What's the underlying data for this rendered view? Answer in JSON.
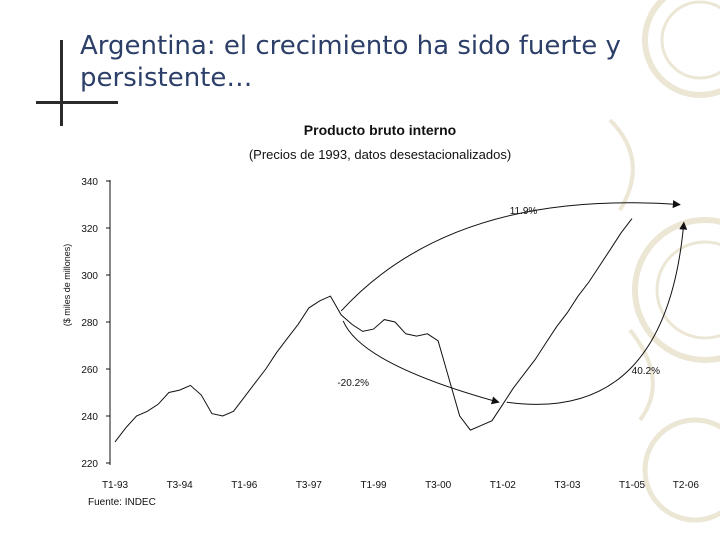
{
  "slide": {
    "title": "Argentina: el crecimiento ha sido fuerte y persistente…",
    "source": "Fuente: INDEC"
  },
  "chart_data": {
    "type": "line",
    "title": "Producto bruto interno",
    "subtitle": "(Precios de 1993, datos desestacionalizados)",
    "xlabel": "",
    "ylabel": "($ miles de millones)",
    "ylim": [
      220,
      340
    ],
    "yticks": [
      220,
      240,
      260,
      280,
      300,
      320,
      340
    ],
    "xticks": [
      "T1-93",
      "T3-94",
      "T1-96",
      "T3-97",
      "T1-99",
      "T3-00",
      "T1-02",
      "T3-03",
      "T1-05",
      "T2-06"
    ],
    "series": [
      {
        "values": [
          229,
          235,
          240,
          242,
          245,
          250,
          251,
          253,
          249,
          241,
          240,
          242,
          248,
          254,
          260,
          267,
          273,
          279,
          286,
          289,
          291,
          283,
          279,
          276,
          277,
          281,
          280,
          275,
          274,
          275,
          272,
          256,
          240,
          234,
          236,
          238,
          245,
          252,
          258,
          264,
          271,
          278,
          284,
          291,
          297,
          304,
          311,
          318,
          324
        ]
      }
    ],
    "annotations": [
      {
        "text": "11.9%",
        "from": "T2-98",
        "to": "T2-06"
      },
      {
        "text": "-20.2%",
        "from": "T2-98",
        "to": "T1-02"
      },
      {
        "text": "40.2%",
        "from": "T1-02",
        "to": "T2-06"
      }
    ],
    "grid": false,
    "legend": "none"
  }
}
